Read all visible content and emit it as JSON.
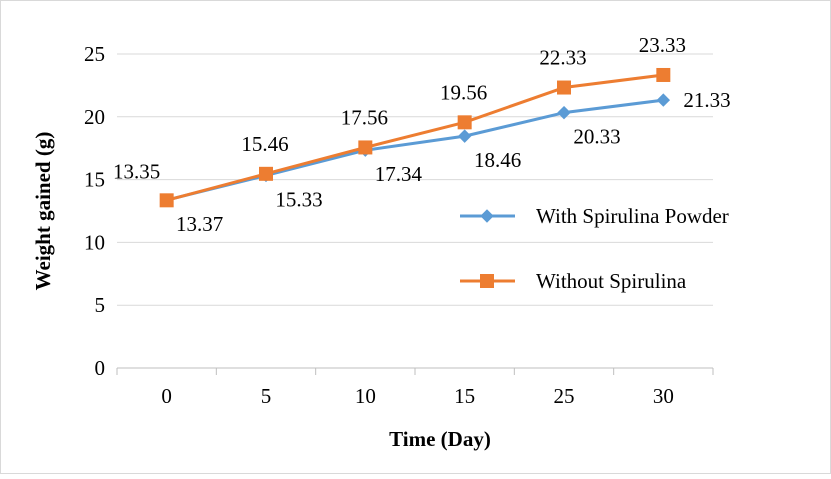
{
  "chart_data": {
    "type": "line",
    "categories": [
      "0",
      "5",
      "10",
      "15",
      "25",
      "30"
    ],
    "series": [
      {
        "name": "With Spirulina Powder",
        "values": [
          13.37,
          15.33,
          17.34,
          18.46,
          20.33,
          21.33
        ],
        "color": "#5B9BD5",
        "marker": "diamond"
      },
      {
        "name": "Without Spirulina",
        "values": [
          13.35,
          15.46,
          17.56,
          19.56,
          22.33,
          23.33
        ],
        "color": "#ED7D31",
        "marker": "square"
      }
    ],
    "xlabel": "Time (Day)",
    "ylabel": "Weight gained (g)",
    "ylim": [
      0,
      25
    ],
    "yticks": [
      "0",
      "5",
      "10",
      "15",
      "20",
      "25"
    ],
    "grid": true,
    "legend_position": "right"
  }
}
